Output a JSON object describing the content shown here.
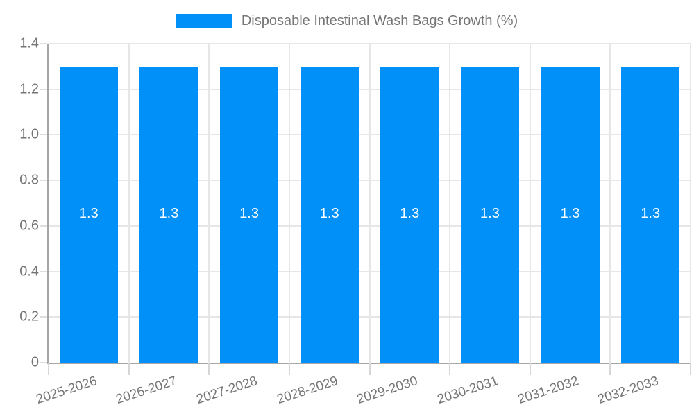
{
  "chart_data": {
    "type": "bar",
    "title": "",
    "legend": {
      "label": "Disposable Intestinal Wash Bags Growth (%)",
      "position": "top-center"
    },
    "categories": [
      "2025-2026",
      "2026-2027",
      "2027-2028",
      "2028-2029",
      "2029-2030",
      "2030-2031",
      "2031-2032",
      "2032-2033"
    ],
    "series": [
      {
        "name": "Disposable Intestinal Wash Bags Growth (%)",
        "values": [
          1.3,
          1.3,
          1.3,
          1.3,
          1.3,
          1.3,
          1.3,
          1.3
        ],
        "data_labels": [
          "1.3",
          "1.3",
          "1.3",
          "1.3",
          "1.3",
          "1.3",
          "1.3",
          "1.3"
        ]
      }
    ],
    "xlabel": "",
    "ylabel": "",
    "ylim": [
      0,
      1.4
    ],
    "ytick_step": 0.2,
    "ytick_labels": [
      "0",
      "0.2",
      "0.4",
      "0.6",
      "0.8",
      "1.0",
      "1.2",
      "1.4"
    ],
    "grid": "both"
  },
  "colors": {
    "bar": "#0090f8",
    "grid": "#e6e6e6",
    "axis": "#a6a6a6",
    "text": "#757575",
    "bar_label": "#ffffff",
    "background": "#ffffff"
  }
}
